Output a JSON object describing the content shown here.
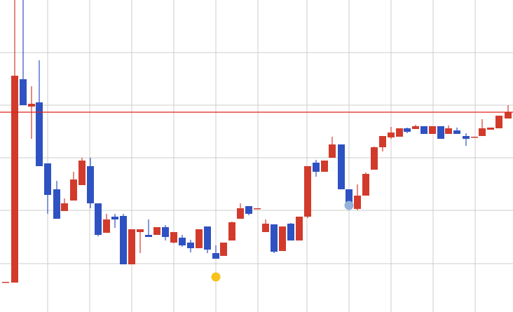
{
  "chart_data": {
    "type": "candlestick",
    "x": [
      8,
      21,
      33,
      45,
      56,
      68,
      81,
      92,
      105,
      117,
      129,
      140,
      152,
      164,
      176,
      188,
      200,
      212,
      224,
      236,
      248,
      260,
      272,
      284,
      296,
      308,
      319,
      331,
      343,
      355,
      367,
      379,
      391,
      403,
      415,
      427,
      439,
      451,
      463,
      474,
      487,
      498,
      510,
      522,
      534,
      546,
      558,
      570,
      581,
      593,
      605,
      617,
      629,
      640,
      652,
      665,
      677,
      688,
      700,
      712,
      725
    ],
    "open": [
      42,
      42,
      332,
      293,
      299,
      212,
      175,
      144,
      159,
      181,
      208,
      155,
      113,
      136,
      137,
      68,
      114,
      110,
      110,
      121,
      99,
      106,
      99,
      91,
      122,
      84,
      80,
      102,
      133,
      151,
      147,
      114,
      125,
      87,
      126,
      102,
      136,
      213,
      200,
      220,
      239,
      175,
      147,
      166,
      203,
      235,
      249,
      250,
      262,
      261,
      265,
      254,
      265,
      254,
      259,
      251,
      249,
      251,
      260,
      262,
      276
    ],
    "high": [
      43,
      445,
      445,
      322,
      359,
      212,
      187,
      162,
      200,
      220,
      220,
      155,
      140,
      140,
      140,
      118,
      118,
      132,
      121,
      124,
      114,
      110,
      103,
      118,
      122,
      95,
      99,
      129,
      155,
      151,
      148,
      132,
      125,
      122,
      127,
      136,
      208,
      217,
      216,
      250,
      239,
      175,
      182,
      199,
      236,
      251,
      264,
      262,
      263,
      267,
      265,
      265,
      265,
      266,
      263,
      255,
      250,
      275,
      263,
      280,
      295
    ],
    "low": [
      42,
      42,
      295,
      247,
      208,
      140,
      133,
      144,
      159,
      181,
      148,
      108,
      113,
      120,
      68,
      68,
      84,
      107,
      110,
      102,
      98,
      93,
      85,
      91,
      84,
      76,
      80,
      102,
      133,
      138,
      147,
      114,
      84,
      87,
      102,
      102,
      134,
      193,
      200,
      220,
      175,
      149,
      145,
      166,
      203,
      229,
      247,
      250,
      255,
      261,
      254,
      254,
      247,
      254,
      254,
      237,
      249,
      251,
      260,
      262,
      276
    ],
    "close": [
      43,
      337,
      295,
      297,
      208,
      167,
      133,
      155,
      189,
      216,
      155,
      110,
      132,
      132,
      68,
      118,
      118,
      107,
      121,
      107,
      114,
      95,
      91,
      118,
      89,
      76,
      99,
      128,
      148,
      140,
      148,
      126,
      86,
      122,
      102,
      136,
      208,
      200,
      216,
      239,
      175,
      152,
      166,
      197,
      235,
      251,
      256,
      262,
      257,
      265,
      254,
      265,
      247,
      262,
      254,
      247,
      250,
      262,
      263,
      280,
      285
    ],
    "up_color": "#d23b2c",
    "down_color": "#2f52c2",
    "xlim": [
      0,
      732
    ],
    "ylim": [
      0,
      445
    ],
    "xticks": [
      68,
      128,
      188,
      248,
      308,
      368,
      438,
      498,
      558,
      618,
      678
    ],
    "yticks": [
      69,
      145,
      220,
      295,
      370
    ],
    "grid": true,
    "hline": {
      "value": 285,
      "color": "#e0201a"
    },
    "markers": [
      {
        "x": 308,
        "y": 50,
        "color": "#f7c21b"
      },
      {
        "x": 498,
        "y": 152,
        "color": "#93b1d9"
      }
    ]
  }
}
